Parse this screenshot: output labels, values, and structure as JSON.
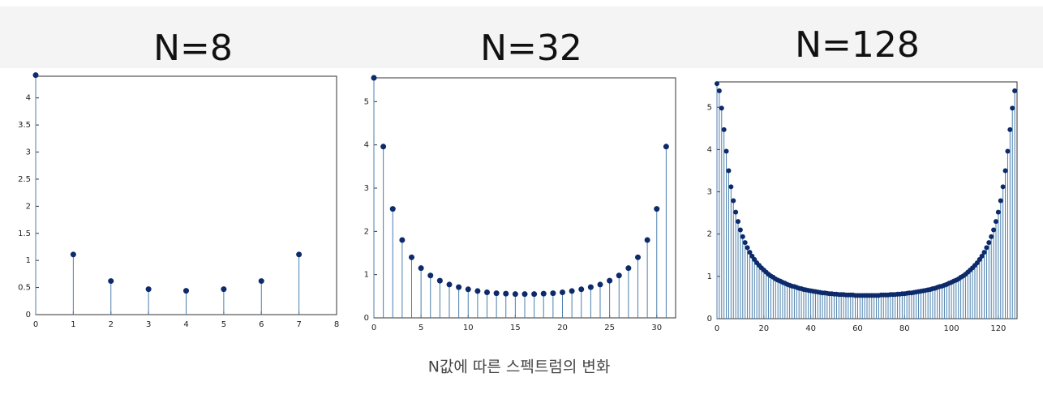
{
  "chart_data": [
    {
      "type": "stem",
      "title": "N=8",
      "color": "#4a7fae",
      "marker_color": "#0d2a6b",
      "x": [
        0,
        1,
        2,
        3,
        4,
        5,
        6,
        7
      ],
      "values": [
        4.42,
        1.11,
        0.62,
        0.47,
        0.44,
        0.47,
        0.62,
        1.11
      ],
      "xlim": [
        0,
        8
      ],
      "xticks": [
        0,
        1,
        2,
        3,
        4,
        5,
        6,
        7,
        8
      ],
      "ylim": [
        0,
        4.4
      ],
      "yticks": [
        0,
        0.5,
        1,
        1.5,
        2,
        2.5,
        3,
        3.5,
        4
      ]
    },
    {
      "type": "stem",
      "title": "N=32",
      "color": "#4a7fae",
      "marker_color": "#0d2a6b",
      "x": [
        0,
        1,
        2,
        3,
        4,
        5,
        6,
        7,
        8,
        9,
        10,
        11,
        12,
        13,
        14,
        15,
        16,
        17,
        18,
        19,
        20,
        21,
        22,
        23,
        24,
        25,
        26,
        27,
        28,
        29,
        30,
        31
      ],
      "values": [
        5.55,
        3.96,
        2.52,
        1.8,
        1.4,
        1.15,
        0.98,
        0.86,
        0.77,
        0.71,
        0.66,
        0.62,
        0.59,
        0.57,
        0.56,
        0.55,
        0.55,
        0.55,
        0.56,
        0.57,
        0.59,
        0.62,
        0.66,
        0.71,
        0.77,
        0.86,
        0.98,
        1.15,
        1.4,
        1.8,
        2.52,
        3.96
      ],
      "xlim": [
        0,
        32
      ],
      "xticks": [
        0,
        5,
        10,
        15,
        20,
        25,
        30
      ],
      "ylim": [
        0,
        5.55
      ],
      "yticks": [
        0,
        1,
        2,
        3,
        4,
        5
      ]
    },
    {
      "type": "stem",
      "title": "N=128",
      "color": "#4a7fae",
      "marker_color": "#0d2a6b",
      "x": [
        0,
        1,
        2,
        3,
        4,
        5,
        6,
        7,
        8,
        9,
        10,
        11,
        12,
        13,
        14,
        15,
        16,
        17,
        18,
        19,
        20,
        21,
        22,
        23,
        24,
        25,
        26,
        27,
        28,
        29,
        30,
        31,
        32,
        33,
        34,
        35,
        36,
        37,
        38,
        39,
        40,
        41,
        42,
        43,
        44,
        45,
        46,
        47,
        48,
        49,
        50,
        51,
        52,
        53,
        54,
        55,
        56,
        57,
        58,
        59,
        60,
        61,
        62,
        63,
        64,
        65,
        66,
        67,
        68,
        69,
        70,
        71,
        72,
        73,
        74,
        75,
        76,
        77,
        78,
        79,
        80,
        81,
        82,
        83,
        84,
        85,
        86,
        87,
        88,
        89,
        90,
        91,
        92,
        93,
        94,
        95,
        96,
        97,
        98,
        99,
        100,
        101,
        102,
        103,
        104,
        105,
        106,
        107,
        108,
        109,
        110,
        111,
        112,
        113,
        114,
        115,
        116,
        117,
        118,
        119,
        120,
        121,
        122,
        123,
        124,
        125,
        126,
        127
      ],
      "values": [
        5.56,
        5.39,
        4.98,
        4.47,
        3.96,
        3.5,
        3.12,
        2.79,
        2.52,
        2.3,
        2.1,
        1.94,
        1.8,
        1.68,
        1.57,
        1.48,
        1.4,
        1.32,
        1.26,
        1.2,
        1.15,
        1.1,
        1.05,
        1.01,
        0.98,
        0.94,
        0.91,
        0.89,
        0.86,
        0.84,
        0.81,
        0.79,
        0.77,
        0.76,
        0.74,
        0.72,
        0.71,
        0.69,
        0.68,
        0.67,
        0.66,
        0.65,
        0.64,
        0.63,
        0.62,
        0.61,
        0.61,
        0.6,
        0.59,
        0.59,
        0.58,
        0.58,
        0.57,
        0.57,
        0.57,
        0.56,
        0.56,
        0.56,
        0.56,
        0.55,
        0.55,
        0.55,
        0.55,
        0.55,
        0.55,
        0.55,
        0.55,
        0.55,
        0.55,
        0.55,
        0.56,
        0.56,
        0.56,
        0.56,
        0.57,
        0.57,
        0.57,
        0.58,
        0.58,
        0.59,
        0.59,
        0.6,
        0.61,
        0.61,
        0.62,
        0.63,
        0.64,
        0.65,
        0.66,
        0.67,
        0.68,
        0.69,
        0.71,
        0.72,
        0.74,
        0.76,
        0.77,
        0.79,
        0.81,
        0.84,
        0.86,
        0.89,
        0.91,
        0.94,
        0.98,
        1.01,
        1.05,
        1.1,
        1.15,
        1.2,
        1.26,
        1.32,
        1.4,
        1.48,
        1.57,
        1.68,
        1.8,
        1.94,
        2.1,
        2.3,
        2.52,
        2.79,
        3.12,
        3.5,
        3.96,
        4.47,
        4.98,
        5.39
      ],
      "xlim": [
        0,
        128
      ],
      "xticks": [
        0,
        20,
        40,
        60,
        80,
        100,
        120
      ],
      "ylim": [
        0,
        5.6
      ],
      "yticks": [
        0,
        1,
        2,
        3,
        4,
        5
      ]
    }
  ],
  "caption": "N값에 따른 스펙트럼의 변화"
}
